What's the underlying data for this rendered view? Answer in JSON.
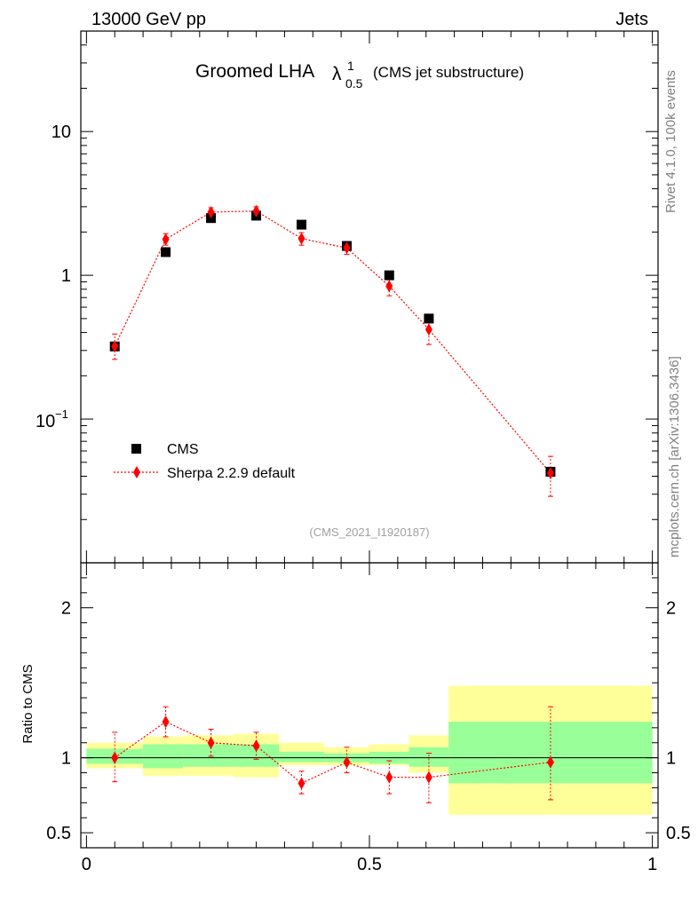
{
  "header": {
    "left": "13000 GeV pp",
    "right": "Jets"
  },
  "side_labels": {
    "top": "Rivet 4.1.0,  100k events",
    "bottom": "mcplots.cern.ch [arXiv:1306.3436]"
  },
  "chart_data": {
    "type": "scatter",
    "title_main": "Groomed LHA",
    "title_lambda": "λ",
    "title_sup": "1",
    "title_sub": "0.5",
    "title_note": "(CMS jet substructure)",
    "analysis_id": "(CMS_2021_I1920187)",
    "xlabel": "",
    "ylabel_ratio": "Ratio to CMS",
    "xlim": [
      -0.01,
      1.01
    ],
    "ylim_main": [
      0.01,
      50
    ],
    "ylim_ratio": [
      0.4,
      2.3
    ],
    "x_ticks": [
      {
        "v": 0,
        "label": "0"
      },
      {
        "v": 0.5,
        "label": "0.5"
      },
      {
        "v": 1,
        "label": "1"
      }
    ],
    "y_ticks_main": [
      {
        "v": 10,
        "label": "10"
      },
      {
        "v": 1,
        "label": "1"
      }
    ],
    "y_tick_main_exp": {
      "v": 0.1,
      "base": "10",
      "exp": "−1"
    },
    "y_ticks_ratio": [
      {
        "v": 2,
        "label": "2"
      },
      {
        "v": 1,
        "label": "1"
      },
      {
        "v": 0.5,
        "label": "0.5"
      }
    ],
    "bin_edges": [
      0,
      0.1,
      0.17,
      0.26,
      0.34,
      0.42,
      0.5,
      0.57,
      0.64,
      1.0
    ],
    "x": [
      0.05,
      0.14,
      0.22,
      0.3,
      0.38,
      0.46,
      0.535,
      0.605,
      0.82
    ],
    "series": [
      {
        "name": "CMS",
        "values": [
          0.32,
          1.45,
          2.5,
          2.6,
          2.25,
          1.6,
          1.0,
          0.5,
          0.043
        ]
      },
      {
        "name": "Sherpa 2.2.9 default",
        "values": [
          0.32,
          1.78,
          2.75,
          2.8,
          1.8,
          1.55,
          0.84,
          0.42,
          0.042
        ],
        "err_low": [
          0.26,
          1.62,
          2.55,
          2.6,
          1.62,
          1.4,
          0.72,
          0.33,
          0.029
        ],
        "err_high": [
          0.39,
          1.95,
          2.95,
          3.0,
          1.98,
          1.72,
          0.96,
          0.51,
          0.055
        ],
        "color": "#ff0000"
      }
    ],
    "ratio": {
      "values": [
        1.0,
        1.24,
        1.1,
        1.08,
        0.83,
        0.97,
        0.87,
        0.87,
        0.97
      ],
      "err_low": [
        0.84,
        1.14,
        1.01,
        0.99,
        0.76,
        0.9,
        0.76,
        0.7,
        0.72
      ],
      "err_high": [
        1.17,
        1.34,
        1.19,
        1.17,
        0.91,
        1.07,
        0.98,
        1.03,
        1.34
      ],
      "band_green": [
        [
          0.96,
          1.06
        ],
        [
          0.93,
          1.09
        ],
        [
          0.94,
          1.09
        ],
        [
          0.94,
          1.09
        ],
        [
          0.97,
          1.04
        ],
        [
          0.97,
          1.03
        ],
        [
          0.96,
          1.04
        ],
        [
          0.94,
          1.07
        ],
        [
          0.83,
          1.24
        ]
      ],
      "band_yellow": [
        [
          0.93,
          1.1
        ],
        [
          0.88,
          1.14
        ],
        [
          0.88,
          1.15
        ],
        [
          0.87,
          1.16
        ],
        [
          0.95,
          1.1
        ],
        [
          0.95,
          1.07
        ],
        [
          0.95,
          1.09
        ],
        [
          0.9,
          1.15
        ],
        [
          0.62,
          1.48
        ]
      ]
    },
    "colors": {
      "band_green": "#99ff99",
      "band_yellow": "#ffff99",
      "cms": "#000000",
      "mc": "#ff0000"
    },
    "legend": {
      "position": "bottom-left"
    }
  }
}
